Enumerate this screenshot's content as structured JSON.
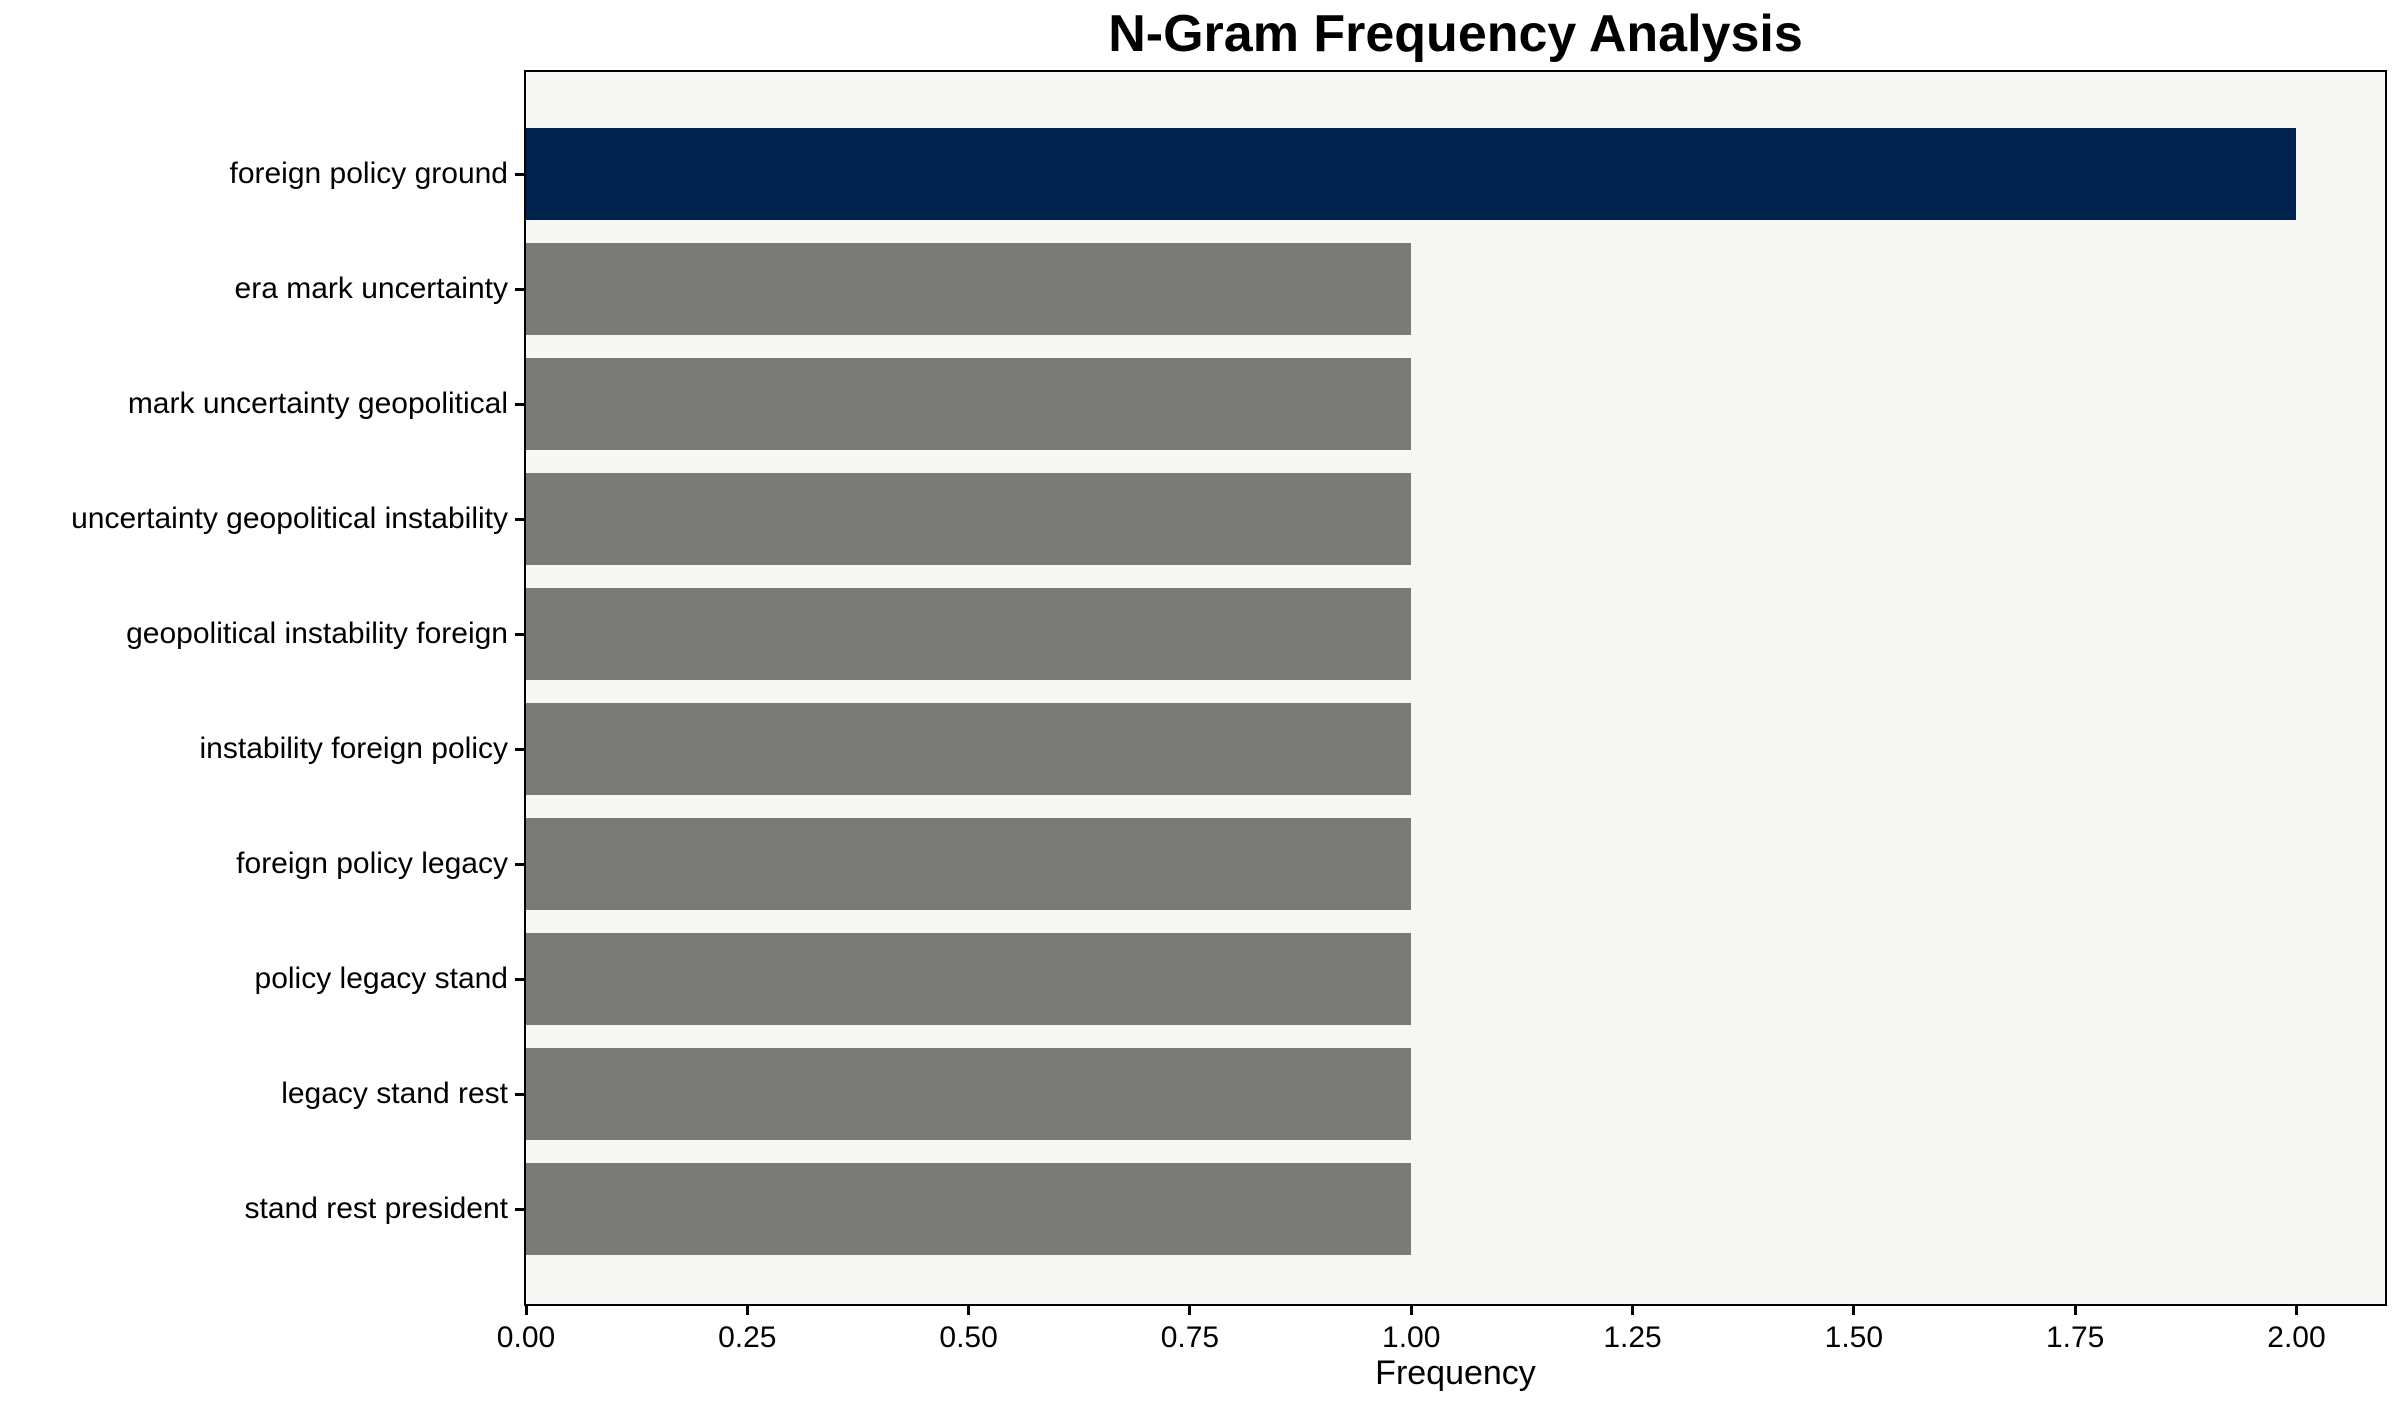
{
  "chart_data": {
    "type": "bar",
    "orientation": "horizontal",
    "title": "N-Gram Frequency Analysis",
    "xlabel": "Frequency",
    "ylabel": "",
    "categories": [
      "foreign policy ground",
      "era mark uncertainty",
      "mark uncertainty geopolitical",
      "uncertainty geopolitical instability",
      "geopolitical instability foreign",
      "instability foreign policy",
      "foreign policy legacy",
      "policy legacy stand",
      "legacy stand rest",
      "stand rest president"
    ],
    "values": [
      2,
      1,
      1,
      1,
      1,
      1,
      1,
      1,
      1,
      1
    ],
    "bar_colors": [
      "#00224f",
      "#7a7a77",
      "#7a7a77",
      "#7a7a77",
      "#7a7a77",
      "#7a7a77",
      "#7a7a77",
      "#7a7a77",
      "#7a7a77",
      "#7a7a77"
    ],
    "xlim": [
      0,
      2.1
    ],
    "xticks": [
      "0.00",
      "0.25",
      "0.50",
      "0.75",
      "1.00",
      "1.25",
      "1.50",
      "1.75",
      "2.00"
    ],
    "grid": false,
    "legend": null,
    "colors": {
      "highlight_bar": "#00224f",
      "default_bar": "#7a7a77",
      "plot_background": "#f7f7f6",
      "figure_background": "#ffffff",
      "frame": "#000000",
      "text": "#000000"
    }
  }
}
